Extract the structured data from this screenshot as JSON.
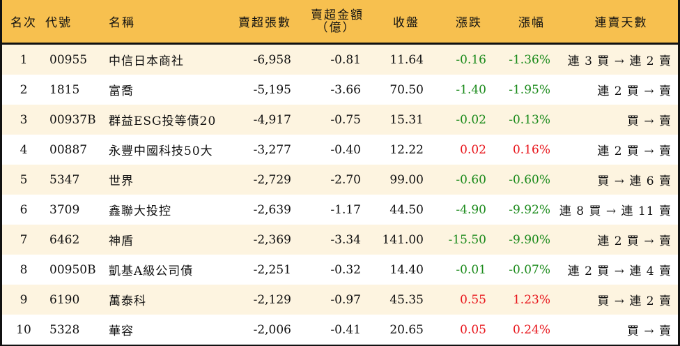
{
  "colors": {
    "header_bg": "#f7c04f",
    "row_alt_bg": "#fdf4e0",
    "down": "#1a8a1a",
    "up": "#e8141a",
    "border": "#111111"
  },
  "header": {
    "rank": "名次",
    "code": "代號",
    "name": "名稱",
    "net_sell_lots": "賣超張數",
    "net_sell_amount_line1": "賣超金額",
    "net_sell_amount_line2": "（億）",
    "close": "收盤",
    "change": "漲跌",
    "change_pct": "漲幅",
    "streak": "連賣天數"
  },
  "rows": [
    {
      "rank": "1",
      "code": "00955",
      "name": "中信日本商社",
      "lots": "-6,958",
      "amount": "-0.81",
      "close": "11.64",
      "change": "-0.16",
      "pct": "-1.36%",
      "dir": "down",
      "streak": "連 3 買 → 連 2 賣"
    },
    {
      "rank": "2",
      "code": "1815",
      "name": "富喬",
      "lots": "-5,195",
      "amount": "-3.66",
      "close": "70.50",
      "change": "-1.40",
      "pct": "-1.95%",
      "dir": "down",
      "streak": "連 2 買 → 賣"
    },
    {
      "rank": "3",
      "code": "00937B",
      "name": "群益ESG投等債20",
      "lots": "-4,917",
      "amount": "-0.75",
      "close": "15.31",
      "change": "-0.02",
      "pct": "-0.13%",
      "dir": "down",
      "streak": "買 → 賣"
    },
    {
      "rank": "4",
      "code": "00887",
      "name": "永豐中國科技50大",
      "lots": "-3,277",
      "amount": "-0.40",
      "close": "12.22",
      "change": "0.02",
      "pct": "0.16%",
      "dir": "up",
      "streak": "連 2 買 → 賣"
    },
    {
      "rank": "5",
      "code": "5347",
      "name": "世界",
      "lots": "-2,729",
      "amount": "-2.70",
      "close": "99.00",
      "change": "-0.60",
      "pct": "-0.60%",
      "dir": "down",
      "streak": "買 → 連 6 賣"
    },
    {
      "rank": "6",
      "code": "3709",
      "name": "鑫聯大投控",
      "lots": "-2,639",
      "amount": "-1.17",
      "close": "44.50",
      "change": "-4.90",
      "pct": "-9.92%",
      "dir": "down",
      "streak": "連 8 買 → 連 11 賣"
    },
    {
      "rank": "7",
      "code": "6462",
      "name": "神盾",
      "lots": "-2,369",
      "amount": "-3.34",
      "close": "141.00",
      "change": "-15.50",
      "pct": "-9.90%",
      "dir": "down",
      "streak": "連 2 買 → 賣"
    },
    {
      "rank": "8",
      "code": "00950B",
      "name": "凱基A級公司債",
      "lots": "-2,251",
      "amount": "-0.32",
      "close": "14.40",
      "change": "-0.01",
      "pct": "-0.07%",
      "dir": "down",
      "streak": "連 2 買 → 連 4 賣"
    },
    {
      "rank": "9",
      "code": "6190",
      "name": "萬泰科",
      "lots": "-2,129",
      "amount": "-0.97",
      "close": "45.35",
      "change": "0.55",
      "pct": "1.23%",
      "dir": "up",
      "streak": "買 → 連 2 賣"
    },
    {
      "rank": "10",
      "code": "5328",
      "name": "華容",
      "lots": "-2,006",
      "amount": "-0.41",
      "close": "20.65",
      "change": "0.05",
      "pct": "0.24%",
      "dir": "up",
      "streak": "買 → 賣"
    }
  ]
}
